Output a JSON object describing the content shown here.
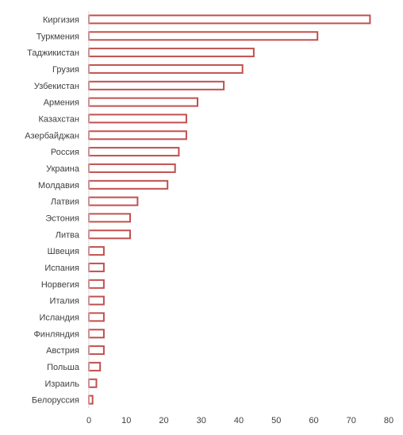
{
  "chart_data": {
    "type": "bar",
    "orientation": "horizontal",
    "title": "",
    "xlabel": "",
    "ylabel": "",
    "xlim": [
      0,
      80
    ],
    "x_ticks": [
      0,
      10,
      20,
      30,
      40,
      50,
      60,
      70,
      80
    ],
    "grid": false,
    "legend": "none",
    "colors": {
      "bar_outline": "#c0504d",
      "bar_fill": "#ffffff",
      "text": "#404040",
      "axis": "#d9d9d9"
    },
    "categories": [
      "Киргизия",
      "Туркмения",
      "Таджикистан",
      "Грузия",
      "Узбекистан",
      "Армения",
      "Казахстан",
      "Азербайджан",
      "Россия",
      "Украина",
      "Молдавия",
      "Латвия",
      "Эстония",
      "Литва",
      "Швеция",
      "Испания",
      "Норвегия",
      "Италия",
      "Исландия",
      "Финляндия",
      "Австрия",
      "Польша",
      "Израиль",
      "Белоруссия"
    ],
    "values": [
      75,
      61,
      44,
      41,
      36,
      29,
      26,
      26,
      24,
      23,
      21,
      13,
      11,
      11,
      4,
      4,
      4,
      4,
      4,
      4,
      4,
      3,
      2,
      1
    ]
  }
}
